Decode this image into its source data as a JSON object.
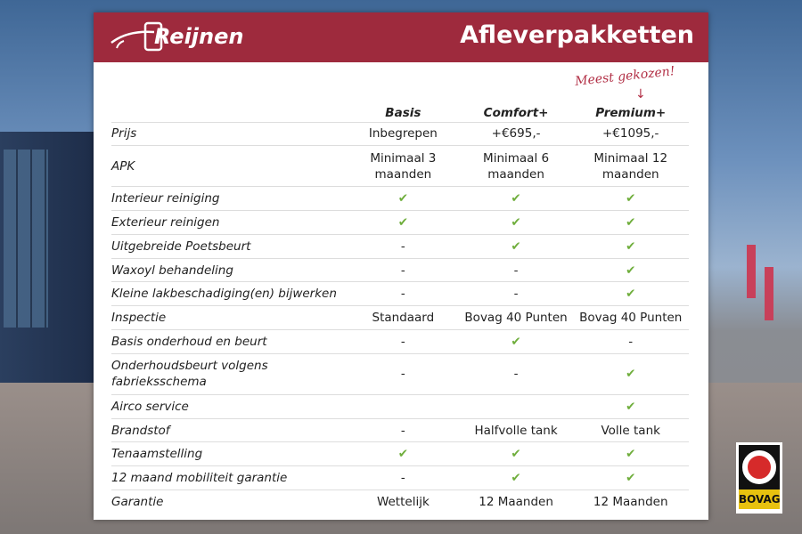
{
  "header": {
    "brand": "Reijnen",
    "title": "Afleverpakketten",
    "accent": "#9e2a3d"
  },
  "note": "Meest gekozen!",
  "columns": [
    "Basis",
    "Comfort+",
    "Premium+"
  ],
  "rows": [
    {
      "label": "Prijs",
      "values": [
        "Inbegrepen",
        "+€695,-",
        "+€1095,-"
      ]
    },
    {
      "label": "APK",
      "values": [
        "Minimaal 3 maanden",
        "Minimaal 6 maanden",
        "Minimaal 12 maanden"
      ],
      "tall": true
    },
    {
      "label": "Interieur reiniging",
      "values": [
        "✔",
        "✔",
        "✔"
      ]
    },
    {
      "label": "Exterieur reinigen",
      "values": [
        "✔",
        "✔",
        "✔"
      ]
    },
    {
      "label": "Uitgebreide Poetsbeurt",
      "values": [
        "-",
        "✔",
        "✔"
      ]
    },
    {
      "label": "Waxoyl behandeling",
      "values": [
        "-",
        "-",
        "✔"
      ]
    },
    {
      "label": "Kleine lakbeschadiging(en) bijwerken",
      "values": [
        "-",
        "-",
        "✔"
      ]
    },
    {
      "label": "Inspectie",
      "values": [
        "Standaard",
        "Bovag 40 Punten",
        "Bovag 40 Punten"
      ]
    },
    {
      "label": "Basis onderhoud en beurt",
      "values": [
        "-",
        "✔",
        "-"
      ]
    },
    {
      "label": "Onderhoudsbeurt volgens fabrieksschema",
      "values": [
        "-",
        "-",
        "✔"
      ],
      "tall": true
    },
    {
      "label": "Airco service",
      "values": [
        "",
        "",
        "✔"
      ]
    },
    {
      "label": "Brandstof",
      "values": [
        "-",
        "Halfvolle tank",
        "Volle tank"
      ]
    },
    {
      "label": "Tenaamstelling",
      "values": [
        "✔",
        "✔",
        "✔"
      ]
    },
    {
      "label": "12 maand mobiliteit garantie",
      "values": [
        "-",
        "✔",
        "✔"
      ]
    },
    {
      "label": "Garantie",
      "values": [
        "Wettelijk",
        "12 Maanden",
        "12 Maanden"
      ]
    }
  ],
  "badge": {
    "text": "BOVAG"
  }
}
